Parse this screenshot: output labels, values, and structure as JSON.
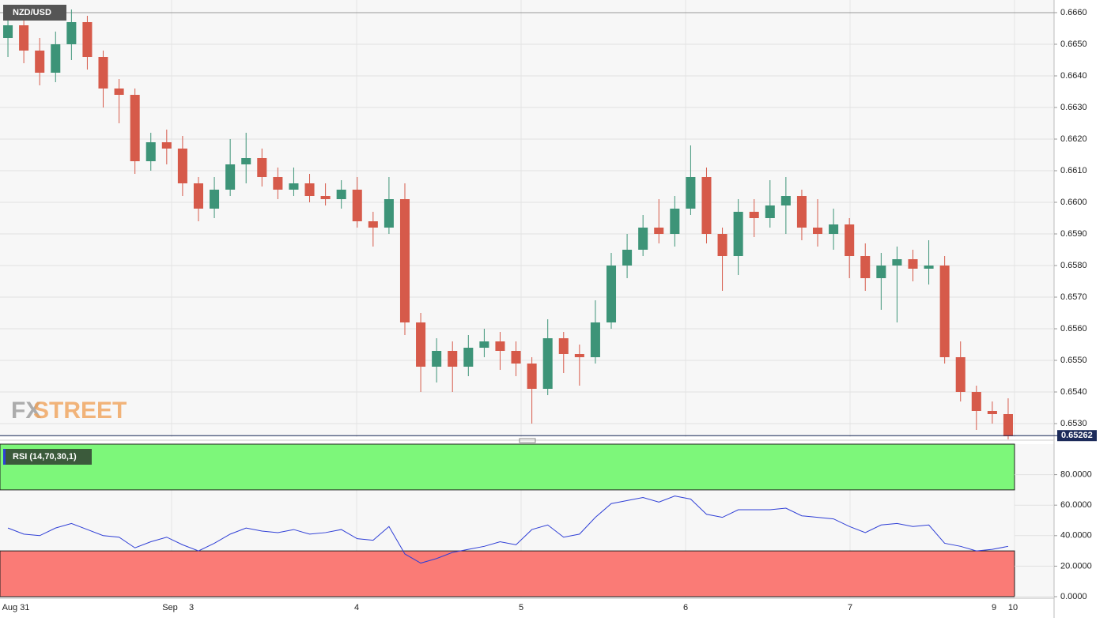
{
  "chart_data": [
    {
      "type": "candlestick",
      "title": "NZD/USD",
      "logo": [
        "FX",
        "STREET"
      ],
      "up_color": "#3d9478",
      "down_color": "#d65a4a",
      "open": [
        0.6652,
        0.6656,
        0.6648,
        0.6641,
        0.665,
        0.6657,
        0.6646,
        0.6636,
        0.6634,
        0.6613,
        0.6619,
        0.6617,
        0.6606,
        0.6598,
        0.6604,
        0.6612,
        0.6614,
        0.6608,
        0.6604,
        0.6606,
        0.6602,
        0.6601,
        0.6604,
        0.6594,
        0.6592,
        0.6601,
        0.6562,
        0.6548,
        0.6553,
        0.6548,
        0.6554,
        0.6556,
        0.6553,
        0.6549,
        0.6541,
        0.6557,
        0.6552,
        0.6551,
        0.6562,
        0.658,
        0.6585,
        0.6592,
        0.659,
        0.6598,
        0.6608,
        0.659,
        0.6583,
        0.6597,
        0.6595,
        0.6599,
        0.6602,
        0.6592,
        0.659,
        0.6593,
        0.6583,
        0.6576,
        0.658,
        0.6582,
        0.6579,
        0.658,
        0.6551,
        0.654,
        0.6534,
        0.6533
      ],
      "high": [
        0.6662,
        0.666,
        0.6652,
        0.6654,
        0.6661,
        0.6659,
        0.6648,
        0.6639,
        0.6636,
        0.6622,
        0.6623,
        0.6621,
        0.6608,
        0.6608,
        0.662,
        0.6622,
        0.6617,
        0.6611,
        0.6611,
        0.6609,
        0.6606,
        0.6607,
        0.6608,
        0.6597,
        0.6608,
        0.6606,
        0.6565,
        0.6557,
        0.6556,
        0.6558,
        0.656,
        0.6559,
        0.6556,
        0.6551,
        0.6563,
        0.6559,
        0.6555,
        0.6569,
        0.6584,
        0.659,
        0.6596,
        0.6601,
        0.6602,
        0.6618,
        0.6611,
        0.6592,
        0.6601,
        0.6601,
        0.6607,
        0.6608,
        0.6604,
        0.6601,
        0.6598,
        0.6595,
        0.6587,
        0.6584,
        0.6586,
        0.6585,
        0.6588,
        0.6583,
        0.6556,
        0.6542,
        0.6537,
        0.6538
      ],
      "low": [
        0.6646,
        0.6644,
        0.6637,
        0.6638,
        0.6645,
        0.6642,
        0.663,
        0.6625,
        0.6609,
        0.661,
        0.6612,
        0.6602,
        0.6594,
        0.6595,
        0.6602,
        0.6606,
        0.6605,
        0.6601,
        0.6602,
        0.66,
        0.6599,
        0.6598,
        0.6592,
        0.6586,
        0.659,
        0.6558,
        0.654,
        0.6543,
        0.654,
        0.6545,
        0.6551,
        0.6547,
        0.6545,
        0.653,
        0.6539,
        0.6546,
        0.6542,
        0.6549,
        0.656,
        0.6576,
        0.6583,
        0.6587,
        0.6586,
        0.6596,
        0.6587,
        0.6572,
        0.6577,
        0.6589,
        0.6592,
        0.659,
        0.6588,
        0.6586,
        0.6585,
        0.6576,
        0.6572,
        0.6566,
        0.6562,
        0.6575,
        0.6574,
        0.6549,
        0.6537,
        0.6528,
        0.653,
        0.6525
      ],
      "close": [
        0.6656,
        0.6648,
        0.6641,
        0.665,
        0.6657,
        0.6646,
        0.6636,
        0.6634,
        0.6613,
        0.6619,
        0.6617,
        0.6606,
        0.6598,
        0.6604,
        0.6612,
        0.6614,
        0.6608,
        0.6604,
        0.6606,
        0.6602,
        0.6601,
        0.6604,
        0.6594,
        0.6592,
        0.6601,
        0.6562,
        0.6548,
        0.6553,
        0.6548,
        0.6554,
        0.6556,
        0.6553,
        0.6549,
        0.6541,
        0.6557,
        0.6552,
        0.6551,
        0.6562,
        0.658,
        0.6585,
        0.6592,
        0.659,
        0.6598,
        0.6608,
        0.659,
        0.6583,
        0.6597,
        0.6595,
        0.6599,
        0.6602,
        0.6592,
        0.659,
        0.6593,
        0.6583,
        0.6576,
        0.658,
        0.6582,
        0.6579,
        0.658,
        0.6551,
        0.654,
        0.6534,
        0.6533,
        0.6526
      ],
      "last_price": 0.65262,
      "last_color": "#1c2b5a",
      "ylim": [
        0.652575,
        0.6664
      ],
      "yticks": [
        {
          "value": 0.653,
          "label": "0.6530"
        },
        {
          "value": 0.654,
          "label": "0.6540"
        },
        {
          "value": 0.655,
          "label": "0.6550"
        },
        {
          "value": 0.656,
          "label": "0.6560"
        },
        {
          "value": 0.657,
          "label": "0.6570"
        },
        {
          "value": 0.658,
          "label": "0.6580"
        },
        {
          "value": 0.659,
          "label": "0.6590"
        },
        {
          "value": 0.66,
          "label": "0.6600"
        },
        {
          "value": 0.661,
          "label": "0.6610"
        },
        {
          "value": 0.662,
          "label": "0.6620"
        },
        {
          "value": 0.663,
          "label": "0.6630"
        },
        {
          "value": 0.664,
          "label": "0.6640"
        },
        {
          "value": 0.665,
          "label": "0.6650"
        },
        {
          "value": 0.666,
          "label": "0.6660"
        }
      ],
      "xticks": [
        "Aug 31",
        "Sep",
        "3",
        "4",
        "5",
        "6",
        "7",
        "9",
        "10"
      ],
      "grid": true
    },
    {
      "type": "line",
      "title": "RSI (14,70,30,1)",
      "color": "#2f3fd6",
      "values": [
        45,
        41,
        40,
        45,
        48,
        44,
        40,
        39,
        32,
        36,
        39,
        34,
        30,
        35,
        41,
        45,
        43,
        42,
        44,
        41,
        42,
        44,
        38,
        37,
        46,
        28,
        22,
        25,
        29,
        31,
        33,
        36,
        34,
        44,
        47,
        39,
        41,
        52,
        61,
        63,
        65,
        62,
        66,
        64,
        54,
        52,
        57,
        57,
        57,
        58,
        53,
        52,
        51,
        46,
        42,
        47,
        48,
        46,
        47,
        35,
        33,
        30,
        31,
        33
      ],
      "overbought": 70,
      "oversold": 30,
      "overbought_color": "#7df77a",
      "oversold_color": "#fa7b76",
      "ylim": [
        0,
        100
      ],
      "yticks": [
        {
          "value": 0,
          "label": "0.0000"
        },
        {
          "value": 20,
          "label": "20.0000"
        },
        {
          "value": 40,
          "label": "40.0000"
        },
        {
          "value": 60,
          "label": "60.0000"
        },
        {
          "value": 80,
          "label": "80.0000"
        }
      ],
      "grid": true
    }
  ]
}
